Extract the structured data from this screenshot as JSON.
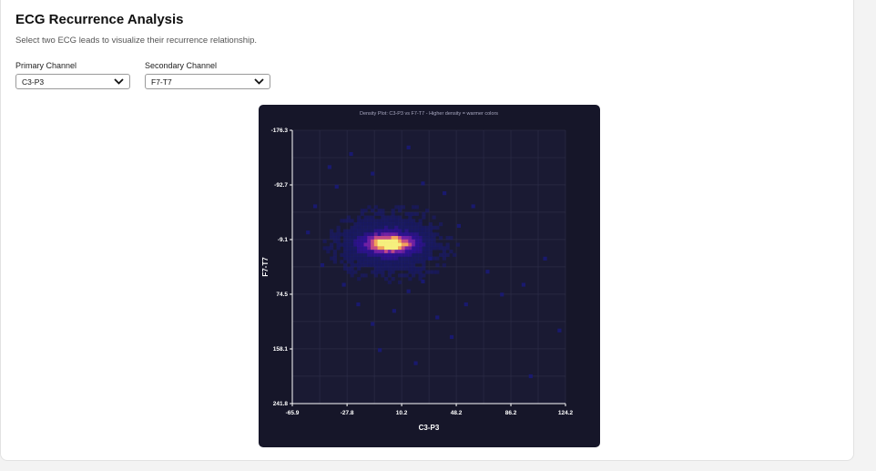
{
  "page": {
    "title": "ECG Recurrence Analysis",
    "subtitle": "Select two ECG leads to visualize their recurrence relationship."
  },
  "controls": {
    "primary": {
      "label": "Primary Channel",
      "value": "C3-P3"
    },
    "secondary": {
      "label": "Secondary Channel",
      "value": "F7-T7"
    }
  },
  "colors": {
    "panel_bg": "#161629",
    "plot_bg": "#1a1a33",
    "grid": "#2f2f4a",
    "axis": "#ffffff",
    "colormap": [
      "#1a1a7a",
      "#3311aa",
      "#7a22b0",
      "#c44c86",
      "#f2a35a",
      "#f6ef7e"
    ]
  },
  "chart_data": {
    "type": "heatmap",
    "title": "Density Plot: C3-P3 vs F7-T7 - Higher density = warmer colors",
    "xlabel": "C3-P3",
    "ylabel": "F7-T7",
    "xlim": [
      -65.9,
      124.2
    ],
    "ylim": [
      -176.3,
      241.8
    ],
    "y_axis_inverted": true,
    "x_ticks": [
      -65.9,
      -27.8,
      10.2,
      48.2,
      86.2,
      124.2
    ],
    "y_ticks": [
      -176.3,
      -92.7,
      -9.1,
      74.5,
      158.1,
      241.8
    ],
    "x_tick_labels": [
      "-65.9",
      "-27.8",
      "10.2",
      "48.2",
      "86.2",
      "124.2"
    ],
    "y_tick_labels": [
      "-176.3",
      "-92.7",
      "-9.1",
      "74.5",
      "158.1",
      "241.8"
    ],
    "grid": true,
    "density_peak": {
      "x": 2,
      "y": -3
    },
    "density_core_spread": {
      "x": 10,
      "y": 8
    },
    "density_halo_spread": {
      "x": 22,
      "y": 28
    },
    "outlier_points": [
      [
        -40,
        -120
      ],
      [
        -25,
        -140
      ],
      [
        -10,
        -110
      ],
      [
        15,
        -150
      ],
      [
        25,
        -95
      ],
      [
        40,
        -80
      ],
      [
        60,
        -60
      ],
      [
        -50,
        -60
      ],
      [
        -55,
        -20
      ],
      [
        -45,
        30
      ],
      [
        -30,
        60
      ],
      [
        -20,
        90
      ],
      [
        -10,
        120
      ],
      [
        5,
        100
      ],
      [
        15,
        70
      ],
      [
        25,
        55
      ],
      [
        35,
        110
      ],
      [
        45,
        140
      ],
      [
        55,
        90
      ],
      [
        70,
        40
      ],
      [
        80,
        75
      ],
      [
        95,
        60
      ],
      [
        110,
        20
      ],
      [
        120,
        130
      ],
      [
        100,
        200
      ],
      [
        20,
        180
      ],
      [
        -5,
        160
      ],
      [
        30,
        20
      ],
      [
        50,
        -30
      ],
      [
        -35,
        -90
      ]
    ]
  }
}
